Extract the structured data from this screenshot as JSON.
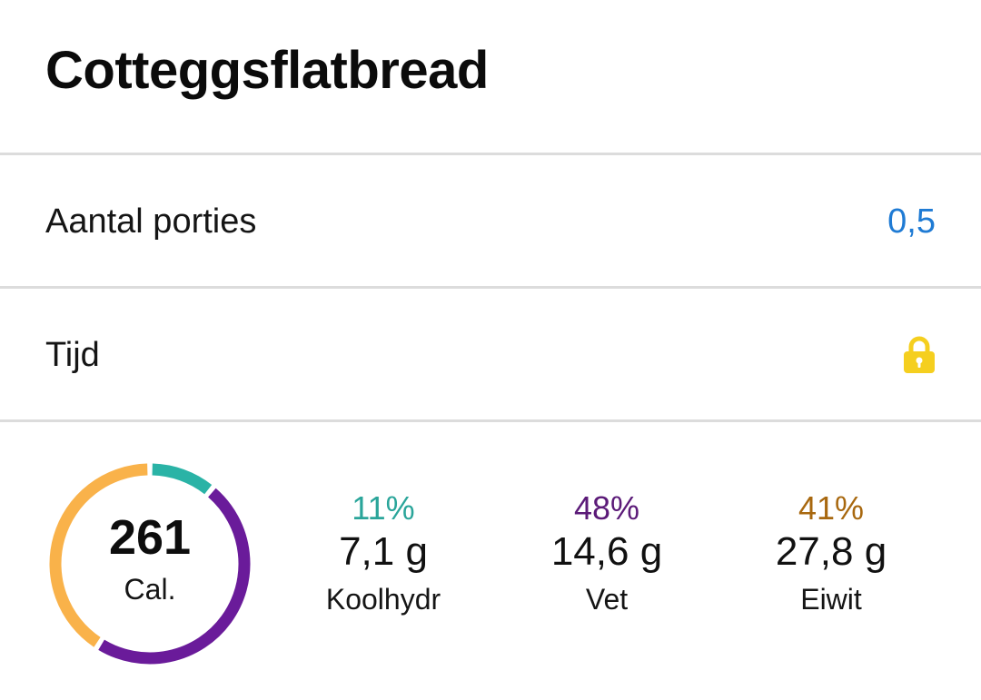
{
  "header": {
    "title": "Cotteggsflatbread"
  },
  "rows": {
    "servings": {
      "label": "Aantal porties",
      "value": "0,5"
    },
    "time": {
      "label": "Tijd",
      "icon": "lock-icon",
      "icon_color": "#f5cf1f"
    }
  },
  "summary": {
    "calories": {
      "value": "261",
      "unit": "Cal."
    },
    "ring": {
      "segments": [
        {
          "name": "Koolhydr",
          "percent": 11,
          "color": "#2ab3a6"
        },
        {
          "name": "Vet",
          "percent": 48,
          "color": "#6a1b9a"
        },
        {
          "name": "Eiwit",
          "percent": 41,
          "color": "#f9b24a"
        }
      ]
    },
    "macros": [
      {
        "percent": "11%",
        "amount": "7,1 g",
        "name": "Koolhydr",
        "color": "#2aa59a"
      },
      {
        "percent": "48%",
        "amount": "14,6 g",
        "name": "Vet",
        "color": "#5b1a78"
      },
      {
        "percent": "41%",
        "amount": "27,8 g",
        "name": "Eiwit",
        "color": "#a8680f"
      }
    ]
  }
}
